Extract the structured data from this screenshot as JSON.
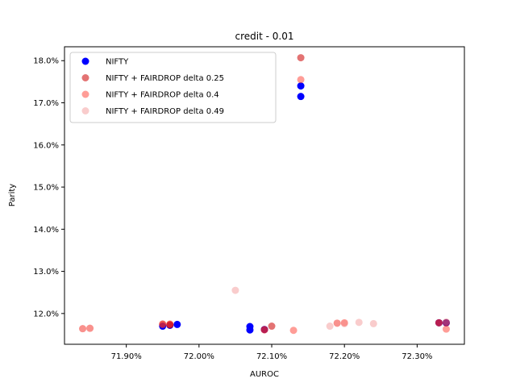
{
  "chart_data": {
    "type": "scatter",
    "title": "credit - 0.01",
    "xlabel": "AUROC",
    "ylabel": "Parity",
    "xlim": [
      71.815,
      72.365
    ],
    "ylim": [
      11.27,
      18.33
    ],
    "xticks": [
      71.9,
      72.0,
      72.1,
      72.2,
      72.3
    ],
    "xtick_labels": [
      "71.90%",
      "72.00%",
      "72.10%",
      "72.20%",
      "72.30%"
    ],
    "yticks": [
      12.0,
      13.0,
      14.0,
      15.0,
      16.0,
      17.0,
      18.0
    ],
    "ytick_labels": [
      "12.0%",
      "13.0%",
      "14.0%",
      "15.0%",
      "16.0%",
      "17.0%",
      "18.0%"
    ],
    "legend_position": "top-left",
    "series": [
      {
        "name": "NIFTY",
        "color": "#0000ff",
        "alpha": 1.0,
        "points": [
          [
            71.95,
            11.7
          ],
          [
            71.97,
            11.74
          ],
          [
            71.96,
            11.72
          ],
          [
            72.07,
            11.69
          ],
          [
            72.07,
            11.61
          ],
          [
            72.09,
            11.62
          ],
          [
            72.14,
            17.4
          ],
          [
            72.14,
            17.15
          ],
          [
            72.33,
            11.78
          ],
          [
            72.34,
            11.78
          ]
        ]
      },
      {
        "name": "NIFTY + FAIRDROP delta 0.25",
        "color": "#cc0000",
        "alpha": 0.55,
        "points": [
          [
            71.95,
            11.75
          ],
          [
            71.96,
            11.74
          ],
          [
            71.96,
            11.73
          ],
          [
            72.09,
            11.62
          ],
          [
            72.1,
            11.7
          ],
          [
            72.14,
            18.07
          ],
          [
            72.33,
            11.78
          ],
          [
            72.34,
            11.78
          ]
        ]
      },
      {
        "name": "NIFTY + FAIRDROP delta 0.4",
        "color": "#ff3b2f",
        "alpha": 0.5,
        "points": [
          [
            71.84,
            11.64
          ],
          [
            71.85,
            11.65
          ],
          [
            71.95,
            11.74
          ],
          [
            71.96,
            11.75
          ],
          [
            72.09,
            11.61
          ],
          [
            72.13,
            11.6
          ],
          [
            72.14,
            17.55
          ],
          [
            72.19,
            11.77
          ],
          [
            72.2,
            11.78
          ],
          [
            72.33,
            11.78
          ],
          [
            72.34,
            11.63
          ]
        ]
      },
      {
        "name": "NIFTY + FAIRDROP delta 0.49",
        "color": "#f08080",
        "alpha": 0.4,
        "points": [
          [
            71.84,
            11.64
          ],
          [
            71.85,
            11.65
          ],
          [
            72.05,
            12.55
          ],
          [
            72.18,
            11.7
          ],
          [
            72.19,
            11.77
          ],
          [
            72.2,
            11.76
          ],
          [
            72.22,
            11.79
          ],
          [
            72.24,
            11.76
          ],
          [
            72.34,
            11.8
          ]
        ]
      }
    ]
  }
}
